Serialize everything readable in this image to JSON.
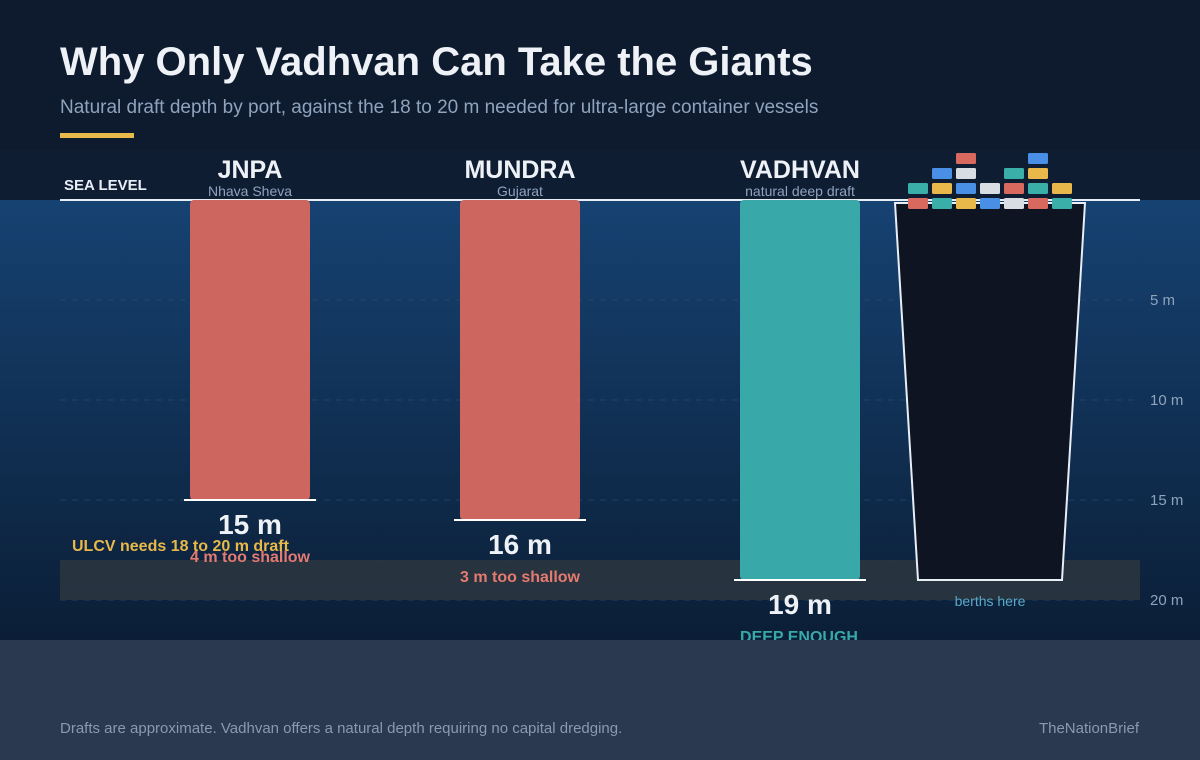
{
  "header": {
    "title": "Why Only Vadhvan Can Take the Giants",
    "subtitle": "Natural draft depth by port, against the 18 to 20 m needed for ultra-large container vessels"
  },
  "colors": {
    "shallow": "#cc665f",
    "deep": "#38a9a8",
    "accent": "#e8b84a",
    "water_top": "#164272",
    "water_bottom": "#0b1e36"
  },
  "chart_data": {
    "type": "bar",
    "orientation": "vertical-depth",
    "categories": [
      "JNPA",
      "MUNDRA",
      "VADHVAN"
    ],
    "sublabels": [
      "Nhava Sheva",
      "Gujarat",
      "natural deep draft"
    ],
    "values": [
      15,
      16,
      19
    ],
    "value_labels": [
      "15 m",
      "16 m",
      "19 m"
    ],
    "status_labels": [
      "4 m too shallow",
      "3 m too shallow",
      "DEEP ENOUGH"
    ],
    "status": [
      "shallow",
      "shallow",
      "deep"
    ],
    "sea_level_label": "SEA LEVEL",
    "y_ticks": [
      5,
      10,
      15,
      20
    ],
    "y_tick_labels": [
      "5 m",
      "10 m",
      "15 m",
      "20 m"
    ],
    "ylim": [
      0,
      22
    ],
    "required_band": {
      "from": 18,
      "to": 20,
      "label": "ULCV needs 18 to 20 m draft"
    },
    "ship": {
      "label": "berths here",
      "draft": 19
    }
  },
  "footer": {
    "note": "Drafts are approximate. Vadhvan offers a natural depth requiring no capital dredging.",
    "brand": "TheNationBrief"
  }
}
